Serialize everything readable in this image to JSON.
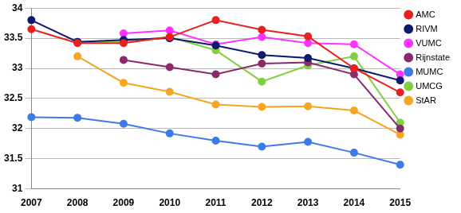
{
  "chart_data": {
    "type": "line",
    "categories": [
      "2007",
      "2008",
      "2009",
      "2010",
      "2011",
      "2012",
      "2013",
      "2014",
      "2015"
    ],
    "series": [
      {
        "name": "AMC",
        "color": "#e8201f",
        "values": [
          33.65,
          33.42,
          33.42,
          33.52,
          33.8,
          33.64,
          33.53,
          33.0,
          32.6
        ]
      },
      {
        "name": "RIVM",
        "color": "#0d1a6e",
        "values": [
          33.8,
          33.44,
          33.47,
          33.5,
          33.38,
          33.22,
          33.17,
          33.0,
          32.8
        ]
      },
      {
        "name": "VUMC",
        "color": "#ff33ff",
        "values": [
          null,
          null,
          33.58,
          33.63,
          33.4,
          33.52,
          33.42,
          33.4,
          32.9
        ]
      },
      {
        "name": "Rijnstate",
        "color": "#8b2a6b",
        "values": [
          null,
          null,
          33.14,
          33.02,
          32.9,
          33.08,
          33.1,
          32.9,
          32.0
        ]
      },
      {
        "name": "MUMC",
        "color": "#3d7be8",
        "values": [
          32.19,
          32.18,
          32.08,
          31.92,
          31.8,
          31.7,
          31.78,
          31.6,
          31.4
        ]
      },
      {
        "name": "UMCG",
        "color": "#80d040",
        "values": [
          null,
          33.44,
          33.45,
          33.52,
          33.3,
          32.78,
          33.05,
          33.2,
          32.1
        ]
      },
      {
        "name": "StAR",
        "color": "#f5a623",
        "values": [
          null,
          33.2,
          32.76,
          32.61,
          32.4,
          32.36,
          32.37,
          32.3,
          31.9
        ]
      }
    ],
    "ylim": [
      31,
      34
    ],
    "yticks": [
      31,
      31.5,
      32,
      32.5,
      33,
      33.5,
      34
    ],
    "grid": true,
    "legend": "right",
    "marker": "circle",
    "line_style": "solid"
  }
}
